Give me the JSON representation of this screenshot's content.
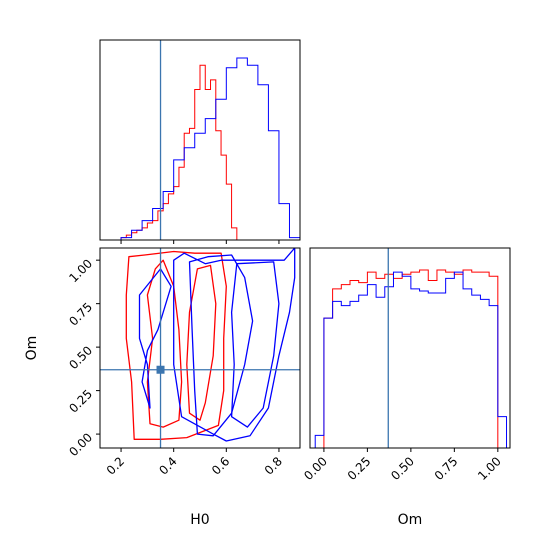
{
  "chart_data": {
    "type": "corner",
    "parameters": [
      "H0",
      "Om"
    ],
    "xlabel_h0": "H0",
    "xlabel_om": "Om",
    "ylabel_om": "Om",
    "truth": {
      "H0": 0.35,
      "Om": 0.37,
      "color": "#3b75af"
    },
    "h0_ticks": [
      "0.2",
      "0.4",
      "0.6",
      "0.8"
    ],
    "h0_tick_values": [
      0.2,
      0.4,
      0.6,
      0.8
    ],
    "om_ticks": [
      "0.00",
      "0.25",
      "0.50",
      "0.75",
      "1.00"
    ],
    "om_tick_values": [
      0.0,
      0.25,
      0.5,
      0.75,
      1.0
    ],
    "h0_range": [
      0.12,
      0.88
    ],
    "om_range": [
      -0.08,
      1.07
    ],
    "series": [
      {
        "color": "#ff0000",
        "h0_hist_edges": [
          0.2,
          0.22,
          0.24,
          0.26,
          0.28,
          0.3,
          0.32,
          0.34,
          0.36,
          0.38,
          0.4,
          0.42,
          0.44,
          0.46,
          0.48,
          0.5,
          0.52,
          0.54,
          0.56,
          0.58,
          0.6,
          0.62,
          0.64
        ],
        "h0_hist_counts": [
          1,
          2,
          3,
          4,
          5,
          7,
          8,
          12,
          15,
          19,
          22,
          30,
          44,
          46,
          62,
          72,
          62,
          66,
          45,
          35,
          23,
          5
        ],
        "om_hist_edges": [
          0.0,
          0.05,
          0.1,
          0.15,
          0.2,
          0.25,
          0.3,
          0.35,
          0.4,
          0.45,
          0.5,
          0.55,
          0.6,
          0.65,
          0.7,
          0.75,
          0.8,
          0.85,
          0.9,
          0.95,
          1.0
        ],
        "om_hist_counts": [
          62,
          76,
          78,
          80,
          79,
          84,
          81,
          83,
          81,
          83,
          84,
          85,
          80,
          85,
          84,
          83,
          85,
          84,
          84,
          82
        ],
        "contours": [
          [
            [
              0.33,
              0.95
            ],
            [
              0.36,
              1.0
            ],
            [
              0.4,
              0.85
            ],
            [
              0.42,
              0.6
            ],
            [
              0.43,
              0.3
            ],
            [
              0.42,
              0.08
            ],
            [
              0.36,
              0.04
            ],
            [
              0.31,
              0.06
            ],
            [
              0.3,
              0.3
            ],
            [
              0.32,
              0.55
            ],
            [
              0.3,
              0.8
            ],
            [
              0.33,
              0.95
            ]
          ],
          [
            [
              0.54,
              0.97
            ],
            [
              0.56,
              0.75
            ],
            [
              0.55,
              0.45
            ],
            [
              0.52,
              0.18
            ],
            [
              0.5,
              0.08
            ],
            [
              0.46,
              0.12
            ],
            [
              0.45,
              0.4
            ],
            [
              0.46,
              0.7
            ],
            [
              0.49,
              0.95
            ],
            [
              0.54,
              0.97
            ]
          ],
          [
            [
              0.29,
              1.03
            ],
            [
              0.4,
              1.05
            ],
            [
              0.48,
              1.04
            ],
            [
              0.58,
              1.04
            ],
            [
              0.6,
              0.85
            ],
            [
              0.59,
              0.55
            ],
            [
              0.59,
              0.25
            ],
            [
              0.57,
              0.05
            ],
            [
              0.45,
              -0.02
            ],
            [
              0.35,
              -0.03
            ],
            [
              0.25,
              -0.03
            ],
            [
              0.24,
              0.3
            ],
            [
              0.22,
              0.55
            ],
            [
              0.22,
              0.8
            ],
            [
              0.23,
              1.02
            ],
            [
              0.29,
              1.03
            ]
          ]
        ]
      },
      {
        "color": "#0000ff",
        "h0_hist_edges": [
          0.2,
          0.24,
          0.28,
          0.32,
          0.36,
          0.4,
          0.44,
          0.48,
          0.52,
          0.56,
          0.6,
          0.64,
          0.68,
          0.72,
          0.76,
          0.8,
          0.84,
          0.88
        ],
        "h0_hist_counts": [
          1,
          4,
          8,
          13,
          20,
          33,
          38,
          44,
          50,
          58,
          71,
          75,
          72,
          64,
          45,
          15,
          1
        ],
        "om_hist_edges": [
          -0.05,
          0.0,
          0.05,
          0.1,
          0.15,
          0.2,
          0.25,
          0.3,
          0.35,
          0.4,
          0.45,
          0.5,
          0.55,
          0.6,
          0.65,
          0.7,
          0.75,
          0.8,
          0.85,
          0.9,
          0.95,
          1.0,
          1.05
        ],
        "om_hist_counts": [
          6,
          62,
          70,
          68,
          70,
          73,
          78,
          72,
          77,
          84,
          82,
          76,
          75,
          74,
          74,
          81,
          84,
          76,
          73,
          71,
          68,
          15
        ],
        "contours": [
          [
            [
              0.64,
              0.98
            ],
            [
              0.78,
              0.99
            ],
            [
              0.8,
              0.75
            ],
            [
              0.78,
              0.45
            ],
            [
              0.74,
              0.15
            ],
            [
              0.68,
              0.04
            ],
            [
              0.62,
              0.1
            ],
            [
              0.63,
              0.4
            ],
            [
              0.62,
              0.7
            ],
            [
              0.64,
              0.98
            ]
          ],
          [
            [
              0.46,
              0.99
            ],
            [
              0.53,
              1.02
            ],
            [
              0.62,
              1.03
            ],
            [
              0.67,
              0.9
            ],
            [
              0.7,
              0.65
            ],
            [
              0.67,
              0.4
            ],
            [
              0.62,
              0.12
            ],
            [
              0.55,
              -0.01
            ],
            [
              0.49,
              0.0
            ],
            [
              0.48,
              0.25
            ],
            [
              0.47,
              0.6
            ],
            [
              0.46,
              0.99
            ]
          ],
          [
            [
              0.27,
              0.8
            ],
            [
              0.35,
              0.95
            ],
            [
              0.39,
              0.85
            ],
            [
              0.34,
              0.6
            ],
            [
              0.3,
              0.48
            ],
            [
              0.28,
              0.3
            ],
            [
              0.31,
              0.15
            ],
            [
              0.3,
              0.4
            ],
            [
              0.27,
              0.55
            ],
            [
              0.27,
              0.8
            ]
          ],
          [
            [
              0.4,
              1.0
            ],
            [
              0.44,
              1.04
            ],
            [
              0.52,
              0.98
            ],
            [
              0.58,
              1.0
            ],
            [
              0.7,
              1.0
            ],
            [
              0.82,
              1.0
            ],
            [
              0.86,
              1.07
            ],
            [
              0.86,
              0.9
            ],
            [
              0.84,
              0.7
            ],
            [
              0.8,
              0.45
            ],
            [
              0.76,
              0.15
            ],
            [
              0.69,
              -0.01
            ],
            [
              0.6,
              -0.04
            ],
            [
              0.55,
              0.0
            ],
            [
              0.43,
              0.1
            ],
            [
              0.4,
              0.4
            ],
            [
              0.4,
              0.7
            ],
            [
              0.4,
              1.0
            ]
          ]
        ]
      }
    ]
  }
}
